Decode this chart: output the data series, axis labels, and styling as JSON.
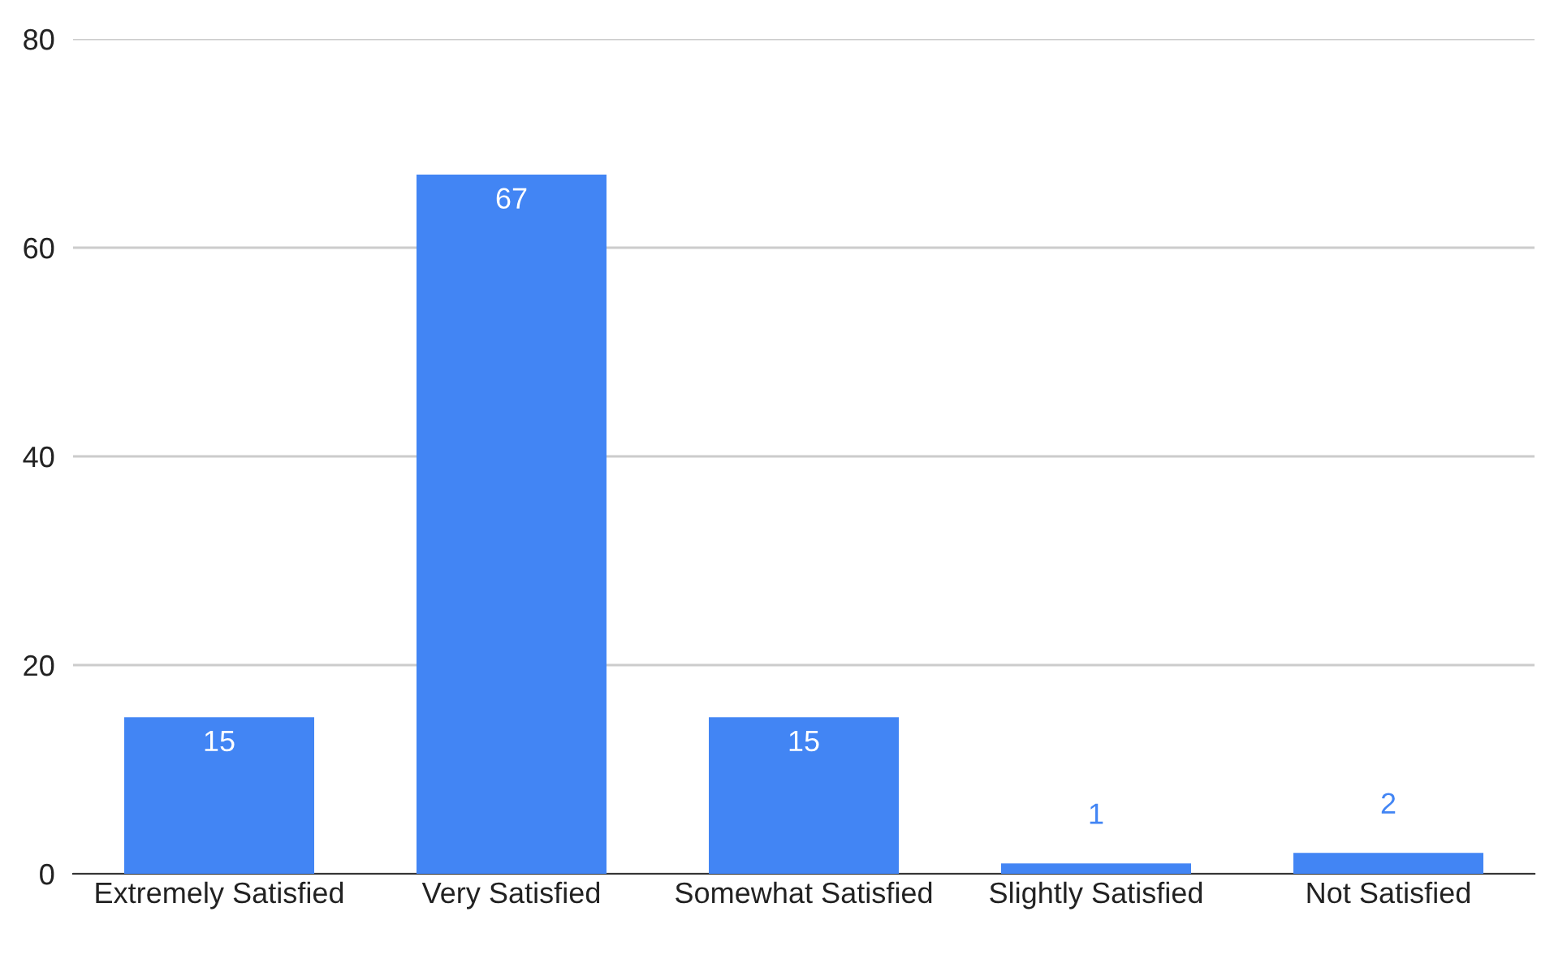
{
  "chart_data": {
    "type": "bar",
    "categories": [
      "Extremely Satisfied",
      "Very Satisfied",
      "Somewhat Satisfied",
      "Slightly Satisfied",
      "Not Satisfied"
    ],
    "values": [
      15,
      67,
      15,
      1,
      2
    ],
    "color": "#4285f4",
    "ylim": [
      0,
      80
    ],
    "yticks": [
      0,
      20,
      40,
      60,
      80
    ],
    "grid": "y",
    "data_labels": true
  }
}
